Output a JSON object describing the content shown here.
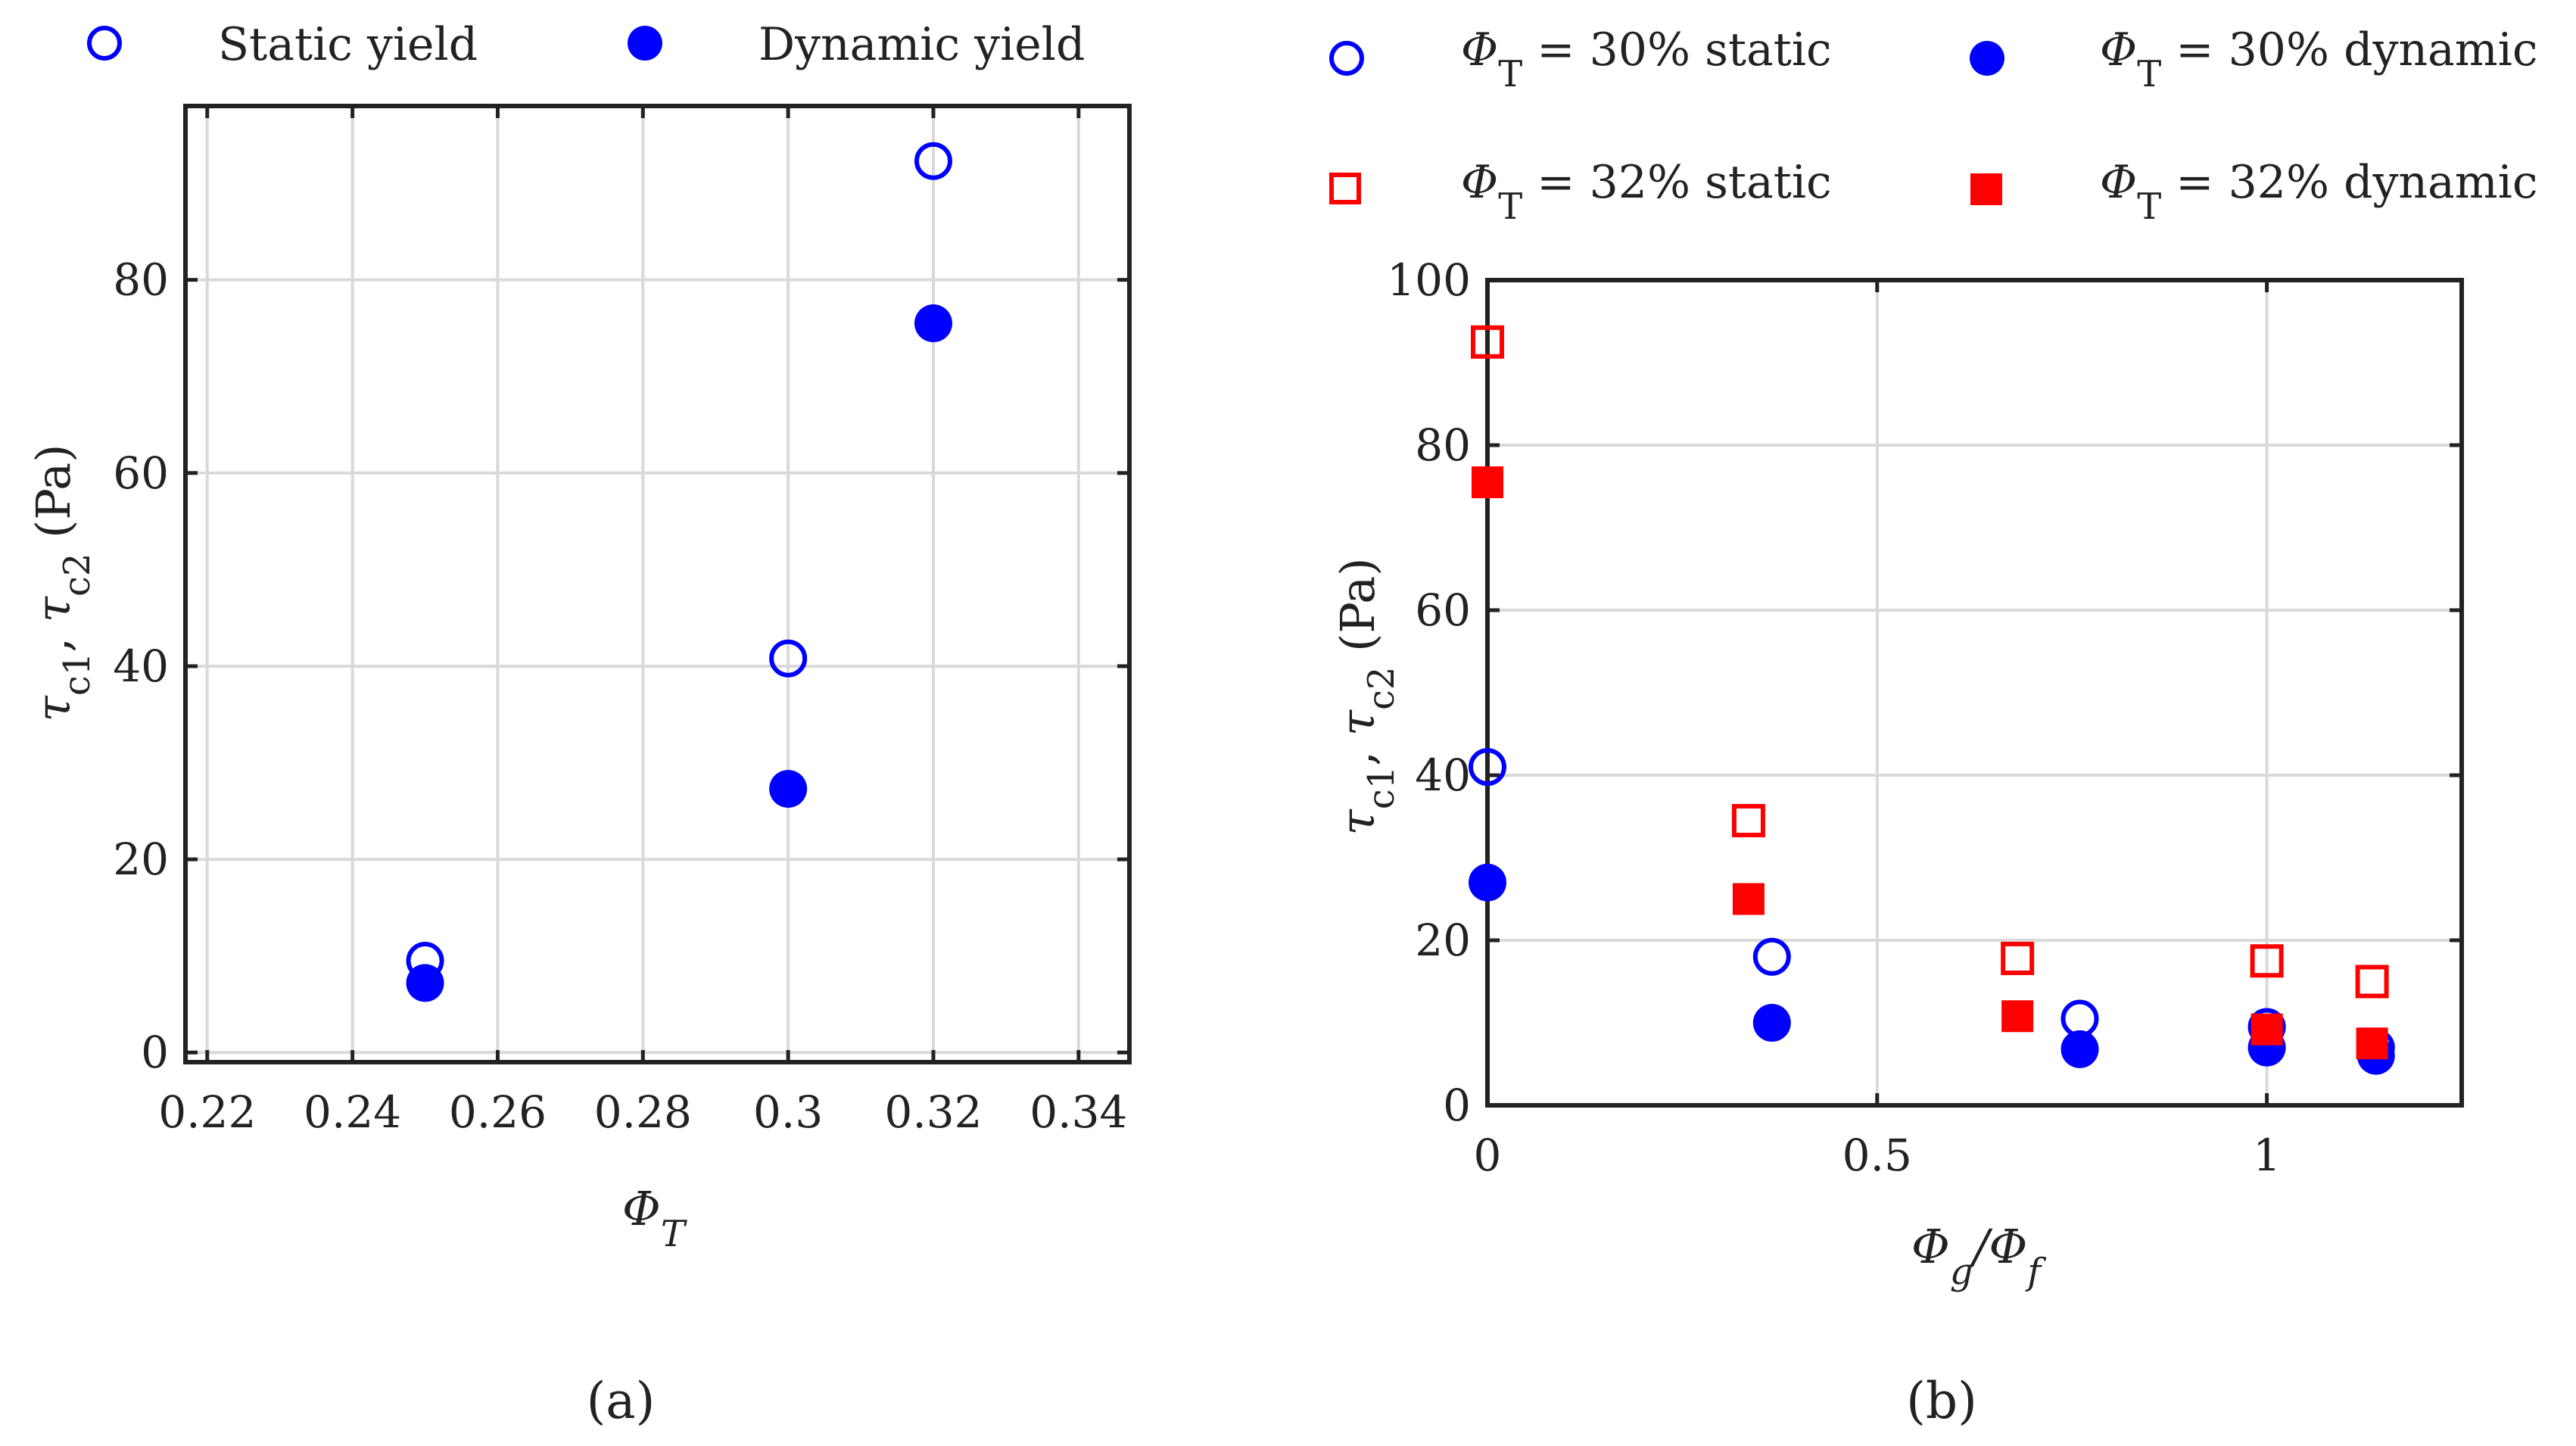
{
  "chart_data": [
    {
      "type": "scatter",
      "panel_label": "(a)",
      "xlabel": "Φ",
      "xlabel_sub": "T",
      "ylabel_tau1": "τ",
      "ylabel_sub1": "c1",
      "ylabel_sep": ", ",
      "ylabel_tau2": "τ",
      "ylabel_sub2": "c2",
      "ylabel_unit": " (Pa)",
      "xlim": [
        0.217,
        0.347
      ],
      "ylim": [
        -1,
        98
      ],
      "xticks": [
        0.22,
        0.24,
        0.26,
        0.28,
        0.3,
        0.32,
        0.34
      ],
      "xtick_labels": [
        "0.22",
        "0.24",
        "0.26",
        "0.28",
        "0.3",
        "0.32",
        "0.34"
      ],
      "yticks": [
        0,
        20,
        40,
        60,
        80
      ],
      "ytick_labels": [
        "0",
        "20",
        "40",
        "60",
        "80"
      ],
      "grid": true,
      "legend_position": "top",
      "series": [
        {
          "name": "Static yield",
          "marker": "circle-open",
          "color": "#0000ff",
          "x": [
            0.25,
            0.3,
            0.32
          ],
          "y": [
            9.5,
            40.8,
            92.3
          ]
        },
        {
          "name": "Dynamic yield",
          "marker": "circle-filled",
          "color": "#0000ff",
          "x": [
            0.25,
            0.3,
            0.32
          ],
          "y": [
            7.2,
            27.3,
            75.5
          ]
        }
      ]
    },
    {
      "type": "scatter",
      "panel_label": "(b)",
      "xlabel_phi_g": "Φ",
      "xlabel_sub_g": "g",
      "xlabel_slash": "/",
      "xlabel_phi_f": "Φ",
      "xlabel_sub_f": "f",
      "ylabel_tau1": "τ",
      "ylabel_sub1": "c1",
      "ylabel_sep": ", ",
      "ylabel_tau2": "τ",
      "ylabel_sub2": "c2",
      "ylabel_unit": " (Pa)",
      "xlim": [
        0,
        1.25
      ],
      "ylim": [
        0,
        100
      ],
      "xticks": [
        0,
        0.5,
        1
      ],
      "xtick_labels": [
        "0",
        "0.5",
        "1"
      ],
      "yticks": [
        0,
        20,
        40,
        60,
        80,
        100
      ],
      "ytick_labels": [
        "0",
        "20",
        "40",
        "60",
        "80",
        "100"
      ],
      "grid": true,
      "legend_position": "top",
      "series": [
        {
          "name_phi": "Φ",
          "name_sub": "T",
          "name_rest": " = 30% static",
          "marker": "circle-open",
          "color": "#0000ff",
          "x": [
            0,
            0.365,
            0.76,
            1.0,
            1.14
          ],
          "y": [
            41,
            18,
            10.5,
            9.5,
            7
          ]
        },
        {
          "name_phi": "Φ",
          "name_sub": "T",
          "name_rest": " = 30% dynamic",
          "marker": "circle-filled",
          "color": "#0000ff",
          "x": [
            0,
            0.365,
            0.76,
            1.0,
            1.14
          ],
          "y": [
            27,
            10,
            6.8,
            7,
            6
          ]
        },
        {
          "name_phi": "Φ",
          "name_sub": "T",
          "name_rest": " = 32% static",
          "marker": "square-open",
          "color": "#ff0000",
          "x": [
            0,
            0.335,
            0.68,
            1.0,
            1.135
          ],
          "y": [
            92.5,
            34.5,
            17.8,
            17.5,
            15
          ]
        },
        {
          "name_phi": "Φ",
          "name_sub": "T",
          "name_rest": " = 32% dynamic",
          "marker": "square-filled",
          "color": "#ff0000",
          "x": [
            0,
            0.335,
            0.68,
            1.0,
            1.135
          ],
          "y": [
            75.5,
            25,
            10.8,
            9.2,
            7.5
          ]
        }
      ]
    }
  ]
}
